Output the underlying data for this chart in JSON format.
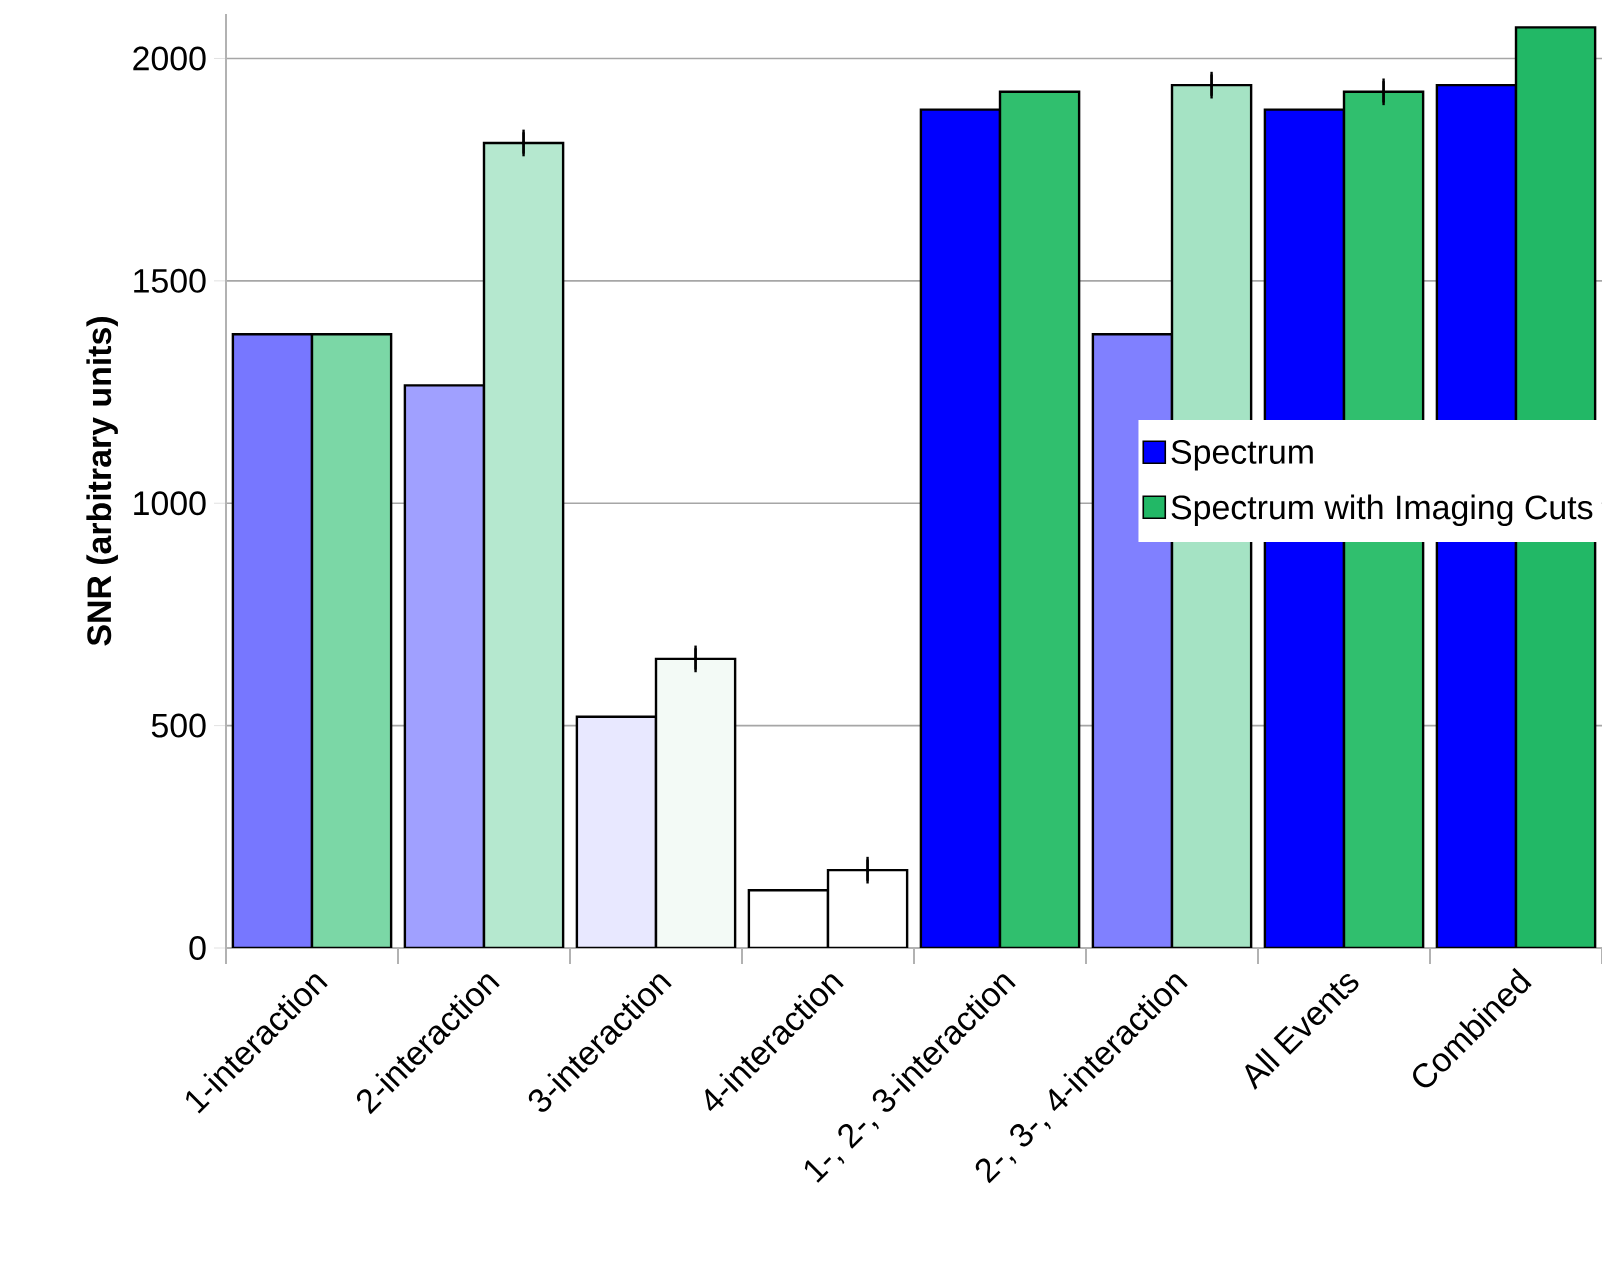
{
  "chart_data": {
    "type": "bar",
    "ylabel": "SNR (arbitrary units)",
    "categories": [
      "1-interaction",
      "2-interaction",
      "3-interaction",
      "4-interaction",
      "1-, 2-, 3-interaction",
      "2-, 3-, 4-interaction",
      "All Events",
      "Combined"
    ],
    "series": [
      {
        "name": "Spectrum",
        "color": "#0000ff",
        "colors": [
          "#7777ff",
          "#a0a0ff",
          "#e8e8ff",
          "#ffffff",
          "#0000ff",
          "#8080ff",
          "#0000ff",
          "#0000ff"
        ],
        "values": [
          1380,
          1265,
          520,
          130,
          1885,
          1380,
          1885,
          1940
        ]
      },
      {
        "name": "Spectrum with Imaging Cuts",
        "color": "#22b866",
        "colors": [
          "#7bd7a6",
          "#b5e8cf",
          "#f3faf6",
          "#ffffff",
          "#30bf6e",
          "#a5e3c4",
          "#30bf6e",
          "#22b866"
        ],
        "values": [
          1380,
          1810,
          650,
          175,
          1925,
          1940,
          1925,
          2070
        ],
        "errors": [
          null,
          3,
          3,
          3,
          null,
          3,
          3,
          null
        ]
      }
    ],
    "ylim": [
      0,
      2100
    ],
    "yticks": [
      0,
      500,
      1000,
      1500,
      2000
    ],
    "grid": "y",
    "legend": "right"
  }
}
